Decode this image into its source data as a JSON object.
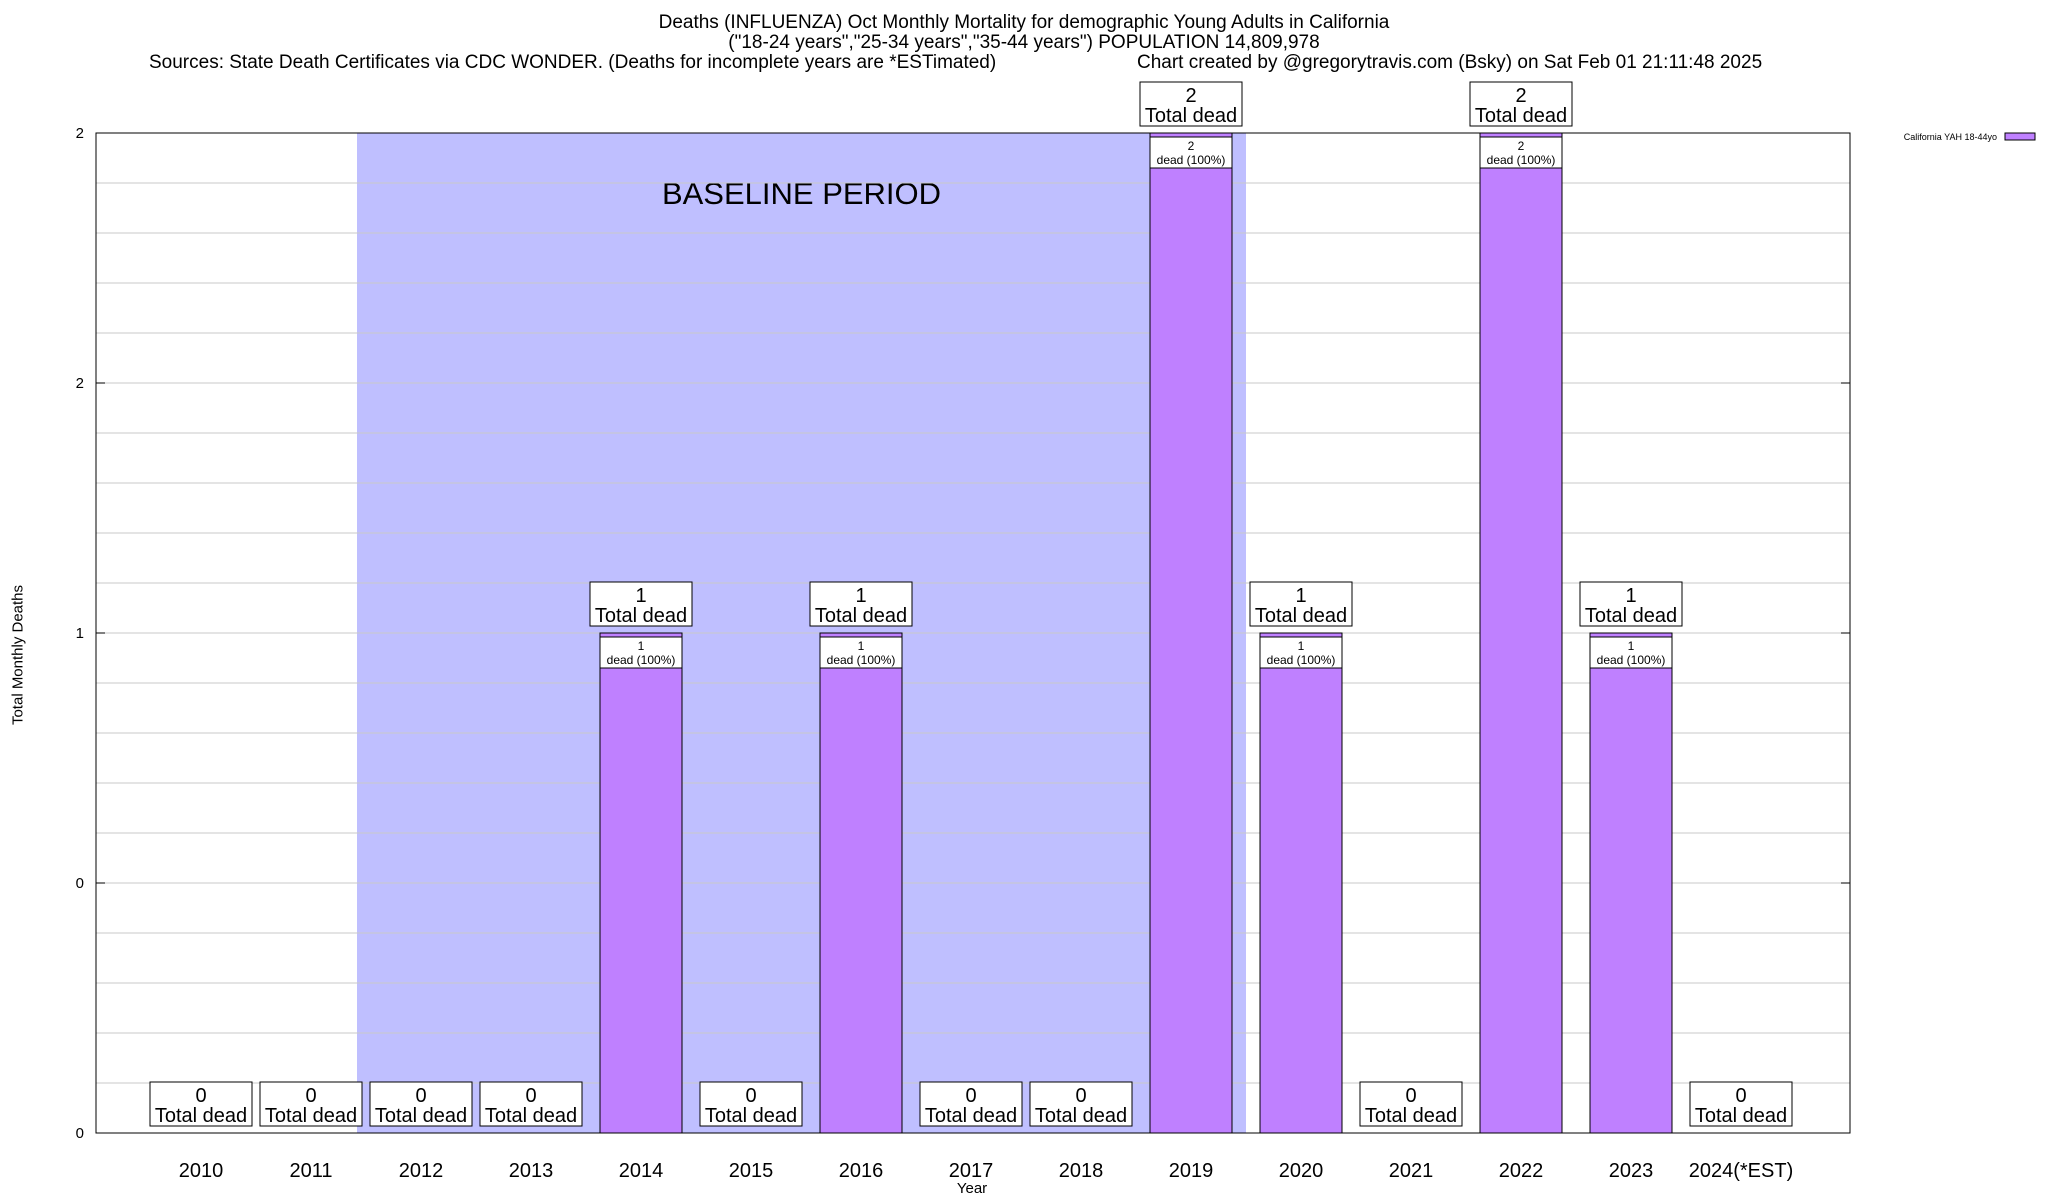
{
  "chart_data": {
    "type": "bar",
    "title": "Deaths (INFLUENZA) Oct Monthly Mortality for demographic Young Adults in California",
    "subtitle": "(\"18-24 years\",\"25-34 years\",\"35-44 years\") POPULATION 14,809,978",
    "sources": "Sources: State Death Certificates via CDC WONDER. (Deaths for incomplete years are *ESTimated)",
    "credit": "Chart created by @gregorytravis.com (Bsky) on Sat Feb 01 21:11:48 2025",
    "xlabel": "Year",
    "ylabel": "Total Monthly Deaths",
    "ylim": [
      0,
      2
    ],
    "y_ticks": [
      {
        "value": 0,
        "label": "0"
      },
      {
        "value": 0.5,
        "label": "0"
      },
      {
        "value": 1,
        "label": "1"
      },
      {
        "value": 1.5,
        "label": "2"
      },
      {
        "value": 2,
        "label": "2"
      }
    ],
    "categories": [
      "2010",
      "2011",
      "2012",
      "2013",
      "2014",
      "2015",
      "2016",
      "2017",
      "2018",
      "2019",
      "2020",
      "2021",
      "2022",
      "2023",
      "2024(*EST)"
    ],
    "series": [
      {
        "name": "California YAH 18-44yo",
        "values": [
          0,
          0,
          0,
          0,
          1,
          0,
          1,
          0,
          0,
          2,
          1,
          0,
          2,
          1,
          0
        ],
        "color": "#bf80ff"
      }
    ],
    "total_label_suffix": "Total dead",
    "bar_label_suffix": "dead (100%)",
    "baseline": {
      "label": "BASELINE PERIOD",
      "start": "2012",
      "end": "2019",
      "color": "#bfbfff"
    },
    "grid": true,
    "legend": "top-right"
  }
}
